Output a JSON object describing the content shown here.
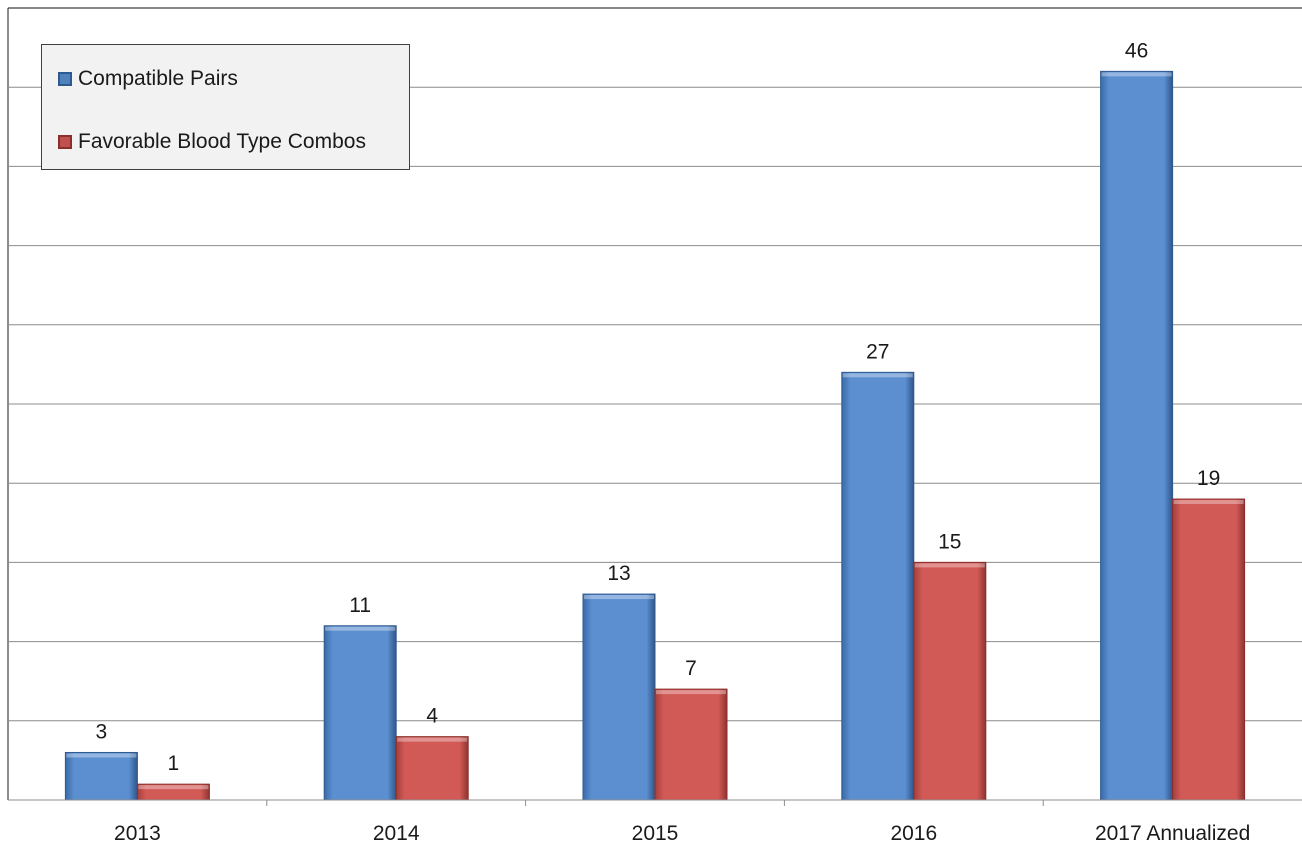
{
  "chart_data": {
    "type": "bar",
    "categories": [
      "2013",
      "2014",
      "2015",
      "2016",
      "2017 Annualized"
    ],
    "series": [
      {
        "name": "Compatible Pairs",
        "values": [
          3,
          11,
          13,
          27,
          46
        ],
        "color": "#4f81bd"
      },
      {
        "name": "Favorable Blood Type Combos",
        "values": [
          1,
          4,
          7,
          15,
          19
        ],
        "color": "#c0504d"
      }
    ],
    "title": "",
    "xlabel": "",
    "ylabel": "",
    "ylim": [
      0,
      50
    ],
    "gridlines": true,
    "y_axis_labels_shown": false,
    "data_labels": true,
    "legend_position": "top-left"
  }
}
